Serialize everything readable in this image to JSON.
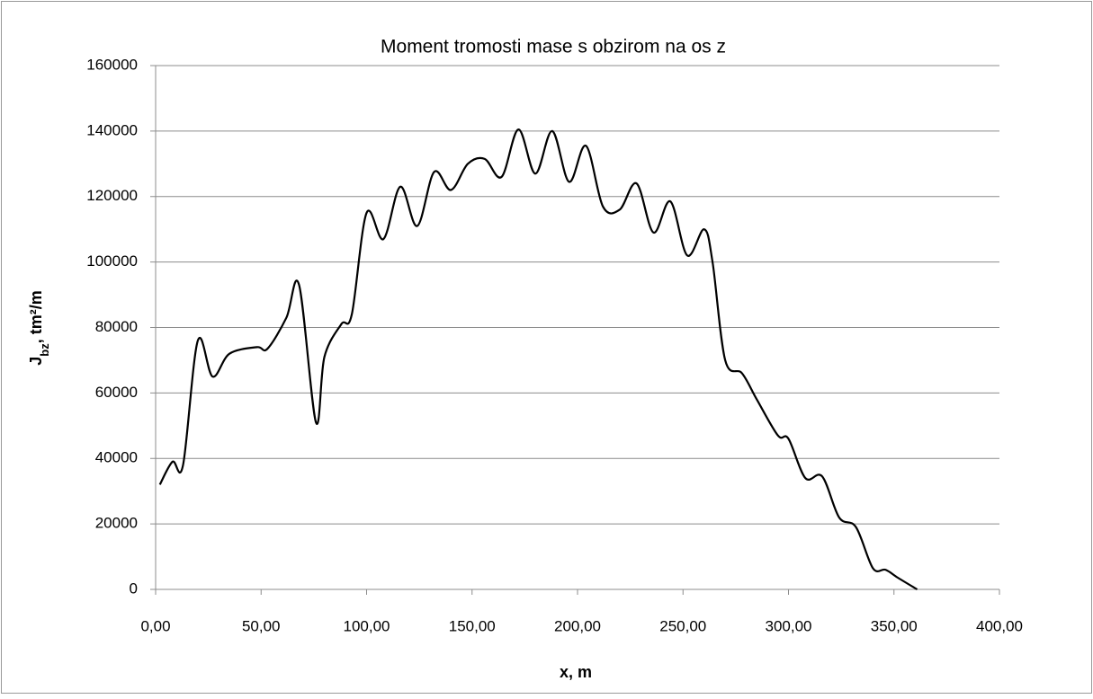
{
  "chart_data": {
    "type": "line",
    "title": "Moment tromosti mase s obzirom na os z",
    "xlabel": "x, m",
    "ylabel": {
      "main": "J",
      "sub": "bz",
      "rest": ", tm²/m"
    },
    "xlim": [
      0,
      400
    ],
    "xticks": [
      {
        "value": 0,
        "label": "0,00"
      },
      {
        "value": 50,
        "label": "50,00"
      },
      {
        "value": 100,
        "label": "100,00"
      },
      {
        "value": 150,
        "label": "150,00"
      },
      {
        "value": 200,
        "label": "200,00"
      },
      {
        "value": 250,
        "label": "250,00"
      },
      {
        "value": 300,
        "label": "300,00"
      },
      {
        "value": 350,
        "label": "350,00"
      },
      {
        "value": 400,
        "label": "400,00"
      }
    ],
    "ylim": [
      0,
      160000
    ],
    "yticks": [
      0,
      20000,
      40000,
      60000,
      80000,
      100000,
      120000,
      140000,
      160000
    ],
    "grid": true,
    "x": [
      2,
      8,
      13,
      20,
      27,
      35,
      48,
      53,
      62,
      68,
      76,
      80,
      88,
      93,
      100,
      108,
      116,
      124,
      132,
      140,
      148,
      156,
      164,
      172,
      180,
      188,
      196,
      204,
      212,
      220,
      228,
      236,
      244,
      252,
      260,
      264,
      270,
      278,
      285,
      295,
      300,
      308,
      316,
      324,
      332,
      340,
      346,
      352,
      361
    ],
    "series": [
      {
        "color": "#000000",
        "values": [
          32000,
          39000,
          38000,
          76000,
          65000,
          72000,
          74000,
          73500,
          83000,
          93000,
          51000,
          71000,
          81000,
          84000,
          115000,
          107000,
          123000,
          111000,
          127500,
          122000,
          130000,
          131500,
          126000,
          140500,
          127000,
          140000,
          124500,
          135500,
          117000,
          116000,
          124000,
          109000,
          118500,
          102000,
          110000,
          100000,
          70000,
          66000,
          58000,
          47000,
          46000,
          34000,
          34500,
          22000,
          19000,
          6500,
          6000,
          3500,
          0
        ]
      }
    ]
  }
}
